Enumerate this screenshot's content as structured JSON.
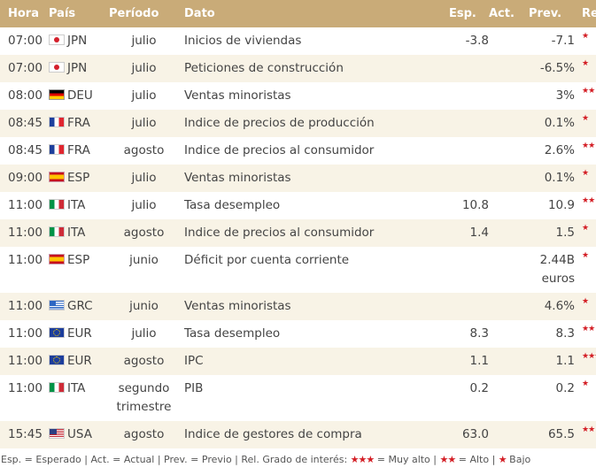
{
  "header": {
    "hora": "Hora",
    "pais": "País",
    "periodo": "Período",
    "dato": "Dato",
    "esp": "Esp.",
    "act": "Act.",
    "prev": "Prev.",
    "rel": "Rel."
  },
  "rows": [
    {
      "hora": "07:00",
      "pais": "JPN",
      "flag": "jpn",
      "periodo": "julio",
      "dato": "Inicios de viviendas",
      "esp": "-3.8",
      "act": "",
      "prev": "-7.1",
      "rel": "★"
    },
    {
      "hora": "07:00",
      "pais": "JPN",
      "flag": "jpn",
      "periodo": "julio",
      "dato": "Peticiones de construcción",
      "esp": "",
      "act": "",
      "prev": "-6.5%",
      "rel": "★"
    },
    {
      "hora": "08:00",
      "pais": "DEU",
      "flag": "deu",
      "periodo": "julio",
      "dato": "Ventas minoristas",
      "esp": "",
      "act": "",
      "prev": "3%",
      "rel": "★★"
    },
    {
      "hora": "08:45",
      "pais": "FRA",
      "flag": "fra",
      "periodo": "julio",
      "dato": "Indice de precios de producción",
      "esp": "",
      "act": "",
      "prev": "0.1%",
      "rel": "★"
    },
    {
      "hora": "08:45",
      "pais": "FRA",
      "flag": "fra",
      "periodo": "agosto",
      "dato": "Indice de precios al consumidor",
      "esp": "",
      "act": "",
      "prev": "2.6%",
      "rel": "★★"
    },
    {
      "hora": "09:00",
      "pais": "ESP",
      "flag": "esp",
      "periodo": "julio",
      "dato": "Ventas minoristas",
      "esp": "",
      "act": "",
      "prev": "0.1%",
      "rel": "★"
    },
    {
      "hora": "11:00",
      "pais": "ITA",
      "flag": "ita",
      "periodo": "julio",
      "dato": "Tasa desempleo",
      "esp": "10.8",
      "act": "",
      "prev": "10.9",
      "rel": "★★"
    },
    {
      "hora": "11:00",
      "pais": "ITA",
      "flag": "ita",
      "periodo": "agosto",
      "dato": "Indice de precios al consumidor",
      "esp": "1.4",
      "act": "",
      "prev": "1.5",
      "rel": "★"
    },
    {
      "hora": "11:00",
      "pais": "ESP",
      "flag": "esp",
      "periodo": "junio",
      "dato": "Déficit por cuenta corriente",
      "esp": "",
      "act": "",
      "prev": "2.44B euros",
      "rel": "★"
    },
    {
      "hora": "11:00",
      "pais": "GRC",
      "flag": "grc",
      "periodo": "junio",
      "dato": "Ventas minoristas",
      "esp": "",
      "act": "",
      "prev": "4.6%",
      "rel": "★"
    },
    {
      "hora": "11:00",
      "pais": "EUR",
      "flag": "eur",
      "periodo": "julio",
      "dato": "Tasa desempleo",
      "esp": "8.3",
      "act": "",
      "prev": "8.3",
      "rel": "★★"
    },
    {
      "hora": "11:00",
      "pais": "EUR",
      "flag": "eur",
      "periodo": "agosto",
      "dato": "IPC",
      "esp": "1.1",
      "act": "",
      "prev": "1.1",
      "rel": "★★★"
    },
    {
      "hora": "11:00",
      "pais": "ITA",
      "flag": "ita",
      "periodo": "segundo trimestre",
      "dato": "PIB",
      "esp": "0.2",
      "act": "",
      "prev": "0.2",
      "rel": "★"
    },
    {
      "hora": "15:45",
      "pais": "USA",
      "flag": "usa",
      "periodo": "agosto",
      "dato": "Indice de gestores de compra",
      "esp": "63.0",
      "act": "",
      "prev": "65.5",
      "rel": "★★"
    }
  ],
  "legend": {
    "prefix": "Esp. = Esperado | Act. = Actual | Prev. = Previo | Rel. Grado de interés:",
    "high_stars": "★★★",
    "high_label": "= Muy alto |",
    "mid_stars": "★★",
    "mid_label": "= Alto |",
    "low_stars": "★",
    "low_label": "Bajo"
  },
  "colors": {
    "header_bg": "#c9ab78",
    "row_alt_bg": "#f8f3e6",
    "star_color": "#d31d24"
  }
}
